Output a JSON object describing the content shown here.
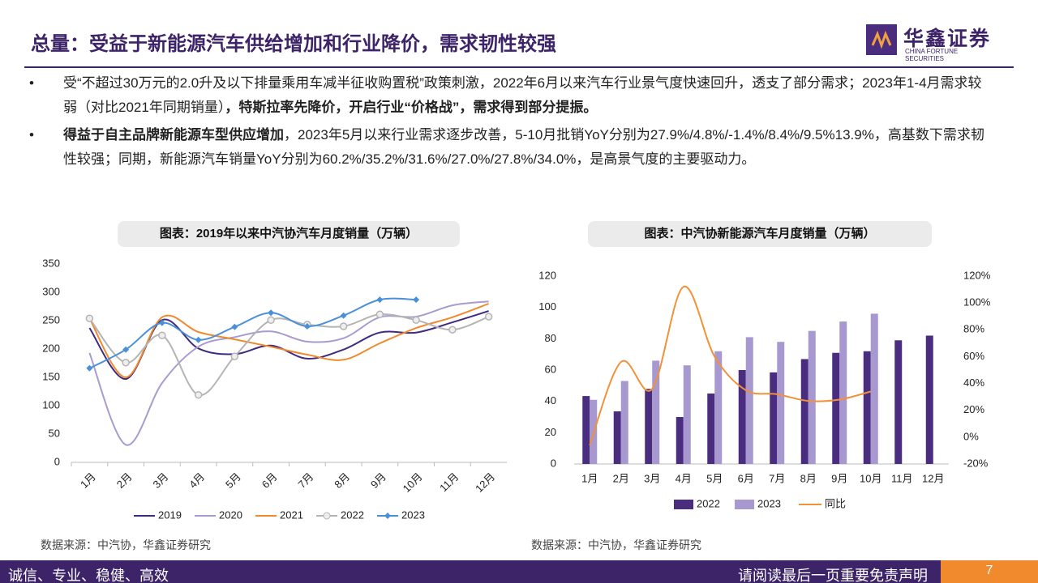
{
  "header": {
    "title": "总量：受益于新能源汽车供给增加和行业降价，需求韧性较强",
    "logo": "华鑫证券",
    "logo_sub": "CHINA FORTUNE SECURITIES"
  },
  "bullets": [
    [
      {
        "text": "受“不超过30万元的2.0升及以下排量乘用车减半征收购置税”政策刺激，2022年6月以来汽车行业景气度快速回升，透支了部分需求；2023年1-4月需求较弱（对比2021年同期销量）"
      },
      {
        "text": "，特斯拉率先降价，开启行业“价格战”，需求得到部分提振。",
        "bold": true
      }
    ],
    [
      {
        "text": "得益于自主品牌新能源车型供应增加",
        "bold": true
      },
      {
        "text": "，2023年5月以来行业需求逐步改善，5-10月批销YoY分别为27.9%/4.8%/-1.4%/8.4%/9.5%13.9%，高基数下需求韧性较强；同期，新能源汽车销量YoY分别为60.2%/35.2%/31.6%/27.0%/27.8%/34.0%，是高景气度的主要驱动力。"
      }
    ]
  ],
  "chart_data": [
    {
      "type": "line",
      "title": "图表：2019年以来中汽协汽车月度销量（万辆）",
      "source": "数据来源：中汽协，华鑫证券研究",
      "categories": [
        "1月",
        "2月",
        "3月",
        "4月",
        "5月",
        "6月",
        "7月",
        "8月",
        "9月",
        "10月",
        "11月",
        "12月"
      ],
      "ylim": [
        0,
        350
      ],
      "yticks": [
        0,
        50,
        100,
        150,
        200,
        250,
        300,
        350
      ],
      "series": [
        {
          "name": "2019",
          "color": "#3f2a80",
          "values": [
            237,
            147,
            251,
            201,
            191,
            206,
            183,
            199,
            229,
            229,
            247,
            267
          ]
        },
        {
          "name": "2020",
          "color": "#a99bd0",
          "values": [
            193,
            31,
            140,
            204,
            221,
            231,
            213,
            219,
            256,
            257,
            277,
            284
          ]
        },
        {
          "name": "2021",
          "color": "#f08a2c",
          "values": [
            254,
            150,
            256,
            230,
            217,
            204,
            190,
            181,
            210,
            237,
            256,
            280
          ]
        },
        {
          "name": "2022",
          "color": "#b4b4b4",
          "marker": "circle",
          "values": [
            254,
            176,
            224,
            119,
            187,
            251,
            243,
            240,
            261,
            251,
            234,
            257
          ]
        },
        {
          "name": "2023",
          "color": "#4a90d9",
          "marker": "diamond",
          "values": [
            166,
            199,
            246,
            216,
            239,
            264,
            240,
            259,
            287,
            287,
            null,
            null
          ]
        }
      ]
    },
    {
      "type": "bar",
      "title": "图表：中汽协新能源汽车月度销量（万辆）",
      "source": "数据来源：中汽协，华鑫证券研究",
      "categories": [
        "1月",
        "2月",
        "3月",
        "4月",
        "5月",
        "6月",
        "7月",
        "8月",
        "9月",
        "10月",
        "11月",
        "12月"
      ],
      "ylim": [
        0,
        120
      ],
      "yticks": [
        0,
        20,
        40,
        60,
        80,
        100,
        120
      ],
      "y2lim": [
        -20,
        120
      ],
      "y2ticks": [
        {
          "value": -20,
          "label": "-20%"
        },
        {
          "value": 0,
          "label": "0%"
        },
        {
          "value": 20,
          "label": "20%"
        },
        {
          "value": 40,
          "label": "40%"
        },
        {
          "value": 60,
          "label": "60%"
        },
        {
          "value": 80,
          "label": "80%"
        },
        {
          "value": 100,
          "label": "100%"
        },
        {
          "value": 120,
          "label": "120%"
        }
      ],
      "series": [
        {
          "name": "2022",
          "color": "#4a2d7f",
          "values": [
            43.4,
            33.6,
            48,
            30,
            45,
            60,
            58.5,
            67,
            71,
            72,
            79,
            82
          ]
        },
        {
          "name": "2023",
          "color": "#a898d0",
          "values": [
            41,
            53,
            66,
            63,
            72,
            81,
            78,
            85,
            91,
            96,
            null,
            null
          ]
        },
        {
          "name": "同比",
          "color": "#f0923a",
          "type": "line",
          "axis": "y2",
          "values": [
            -6,
            56,
            36,
            112,
            60,
            35,
            32,
            27,
            28,
            34,
            null,
            null
          ]
        }
      ]
    }
  ],
  "footer": {
    "left": "诚信、专业、稳健、高效",
    "right": "请阅读最后一页重要免责声明",
    "page": "7"
  }
}
